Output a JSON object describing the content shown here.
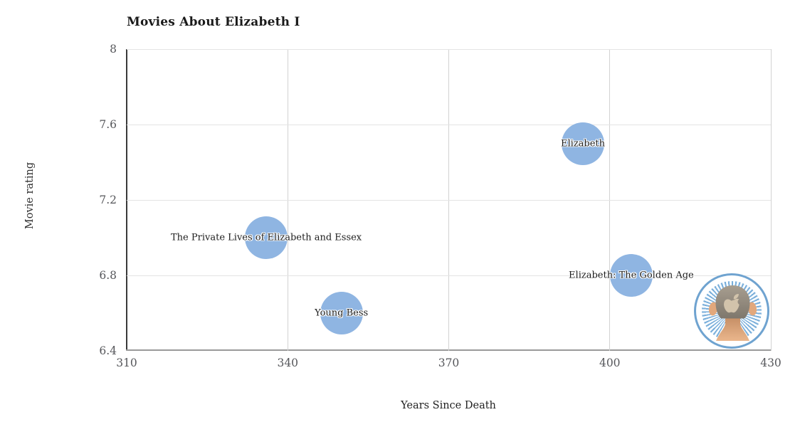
{
  "chart_data": {
    "type": "bubble",
    "title": "Movies About Elizabeth I",
    "xlabel": "Years Since Death",
    "ylabel": "Movie rating",
    "xlim": [
      310,
      430
    ],
    "ylim": [
      6.4,
      8
    ],
    "xticks": [
      310,
      340,
      370,
      400,
      430
    ],
    "xtick_labels": [
      "310",
      "340",
      "370",
      "400",
      "430"
    ],
    "yticks": [
      8,
      7.6,
      7.2,
      6.8,
      6.4
    ],
    "ytick_labels": [
      "8",
      "7.6",
      "7.2",
      "6.8",
      "6.4"
    ],
    "grid": true,
    "legend": false,
    "bubble_color": "#8fb5e2",
    "bubble_radius_px": 30,
    "points": [
      {
        "label": "Elizabeth",
        "x": 395,
        "y": 7.5
      },
      {
        "label": "The Private Lives of Elizabeth and Essex",
        "x": 336,
        "y": 7.0
      },
      {
        "label": "Elizabeth: The Golden Age",
        "x": 404,
        "y": 6.8
      },
      {
        "label": "Young Bess",
        "x": 350,
        "y": 6.6
      }
    ]
  },
  "avatar": {
    "icon": "back-of-head-with-apple-logo-avatar"
  },
  "colors": {
    "bubble": "#8fb5e2",
    "grid_vertical": "#d2d2d2",
    "grid_horizontal": "#e4e4e4",
    "axis_y": "#3a3a3a",
    "axis_x": "#9a9a9a",
    "tick_text": "#55565a",
    "title_text": "#1a1a1a",
    "avatar_ring": "#6fa3d0",
    "avatar_rays": "#79aeda",
    "hair": "#867f74",
    "hair_light": "#a89e90",
    "skin": "#e2a87c",
    "apple_logo": "#d2c3ab"
  }
}
